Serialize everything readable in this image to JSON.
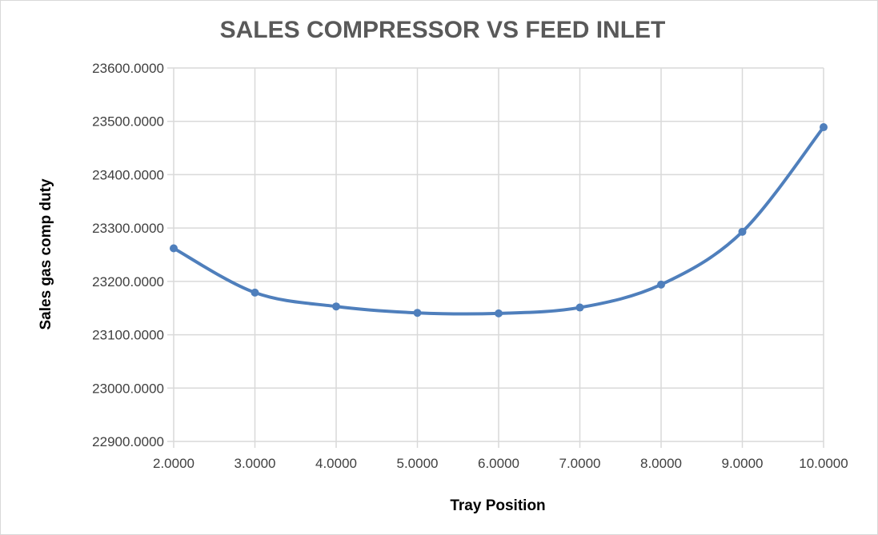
{
  "chart_data": {
    "type": "line",
    "title": "SALES COMPRESSOR VS FEED INLET",
    "xlabel": "Tray Position",
    "ylabel": "Sales gas comp duty",
    "xlim": [
      2,
      10
    ],
    "ylim": [
      22900,
      23600
    ],
    "x_ticks": [
      "2.0000",
      "3.0000",
      "4.0000",
      "5.0000",
      "6.0000",
      "7.0000",
      "8.0000",
      "9.0000",
      "10.0000"
    ],
    "y_ticks": [
      "23600.0000",
      "23500.0000",
      "23400.0000",
      "23300.0000",
      "23200.0000",
      "23100.0000",
      "23000.0000",
      "22900.0000"
    ],
    "grid": true,
    "smooth": true,
    "series": [
      {
        "x": [
          2,
          3,
          4,
          5,
          6,
          7,
          8,
          9,
          10
        ],
        "y": [
          23262,
          23179,
          23153,
          23141,
          23140,
          23151,
          23194,
          23293,
          23489
        ],
        "color": "#4f7fbc"
      }
    ]
  }
}
